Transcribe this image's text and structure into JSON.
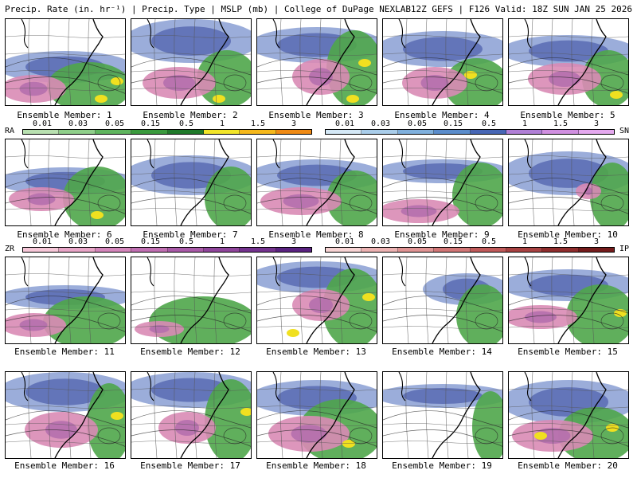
{
  "header": {
    "title_left": "Precip. Rate (in. hr⁻¹) | Precip. Type | MSLP (mb) | College of DuPage NEXLAB",
    "title_right": "12Z GEFS | F126 Valid: 18Z SUN JAN 25 2026"
  },
  "panels": [
    {
      "label": "Ensemble Member: 1"
    },
    {
      "label": "Ensemble Member: 2"
    },
    {
      "label": "Ensemble Member: 3"
    },
    {
      "label": "Ensemble Member: 4"
    },
    {
      "label": "Ensemble Member: 5"
    },
    {
      "label": "Ensemble Member: 6"
    },
    {
      "label": "Ensemble Member: 7"
    },
    {
      "label": "Ensemble Member: 8"
    },
    {
      "label": "Ensemble Member: 9"
    },
    {
      "label": "Ensemble Member: 10"
    },
    {
      "label": "Ensemble Member: 11"
    },
    {
      "label": "Ensemble Member: 12"
    },
    {
      "label": "Ensemble Member: 13"
    },
    {
      "label": "Ensemble Member: 14"
    },
    {
      "label": "Ensemble Member: 15"
    },
    {
      "label": "Ensemble Member: 16"
    },
    {
      "label": "Ensemble Member: 17"
    },
    {
      "label": "Ensemble Member: 18"
    },
    {
      "label": "Ensemble Member: 19"
    },
    {
      "label": "Ensemble Member: 20"
    }
  ],
  "legends": {
    "rain": {
      "end_label": "RA",
      "ticks": [
        "0.01",
        "0.03",
        "0.05",
        "0.15",
        "0.5",
        "1",
        "1.5",
        "3"
      ],
      "colors": [
        "#b8e0b0",
        "#8fcf8a",
        "#5fb55e",
        "#3a9a3d",
        "#1f7a2a",
        "#f2e52a",
        "#f5b81c",
        "#ef8a14"
      ]
    },
    "snow": {
      "end_label": "SN",
      "ticks": [
        "0.01",
        "0.03",
        "0.05",
        "0.15",
        "0.5",
        "1",
        "1.5",
        "3"
      ],
      "colors": [
        "#d4e8f6",
        "#a9cdea",
        "#7fb0dd",
        "#5a8ccb",
        "#4766b5",
        "#b07fd6",
        "#d08fe0",
        "#e4a8ee"
      ]
    },
    "freezing_rain": {
      "end_label": "ZR",
      "ticks": [
        "0.01",
        "0.03",
        "0.05",
        "0.15",
        "0.5",
        "1",
        "1.5",
        "3"
      ],
      "colors": [
        "#f6c7d8",
        "#e8a5c7",
        "#d486bb",
        "#c06fb2",
        "#a95aa8",
        "#8f459b",
        "#74338e",
        "#5a2280"
      ]
    },
    "ice_pellets": {
      "end_label": "IP",
      "ticks": [
        "0.01",
        "0.03",
        "0.05",
        "0.15",
        "0.5",
        "1",
        "1.5",
        "3"
      ],
      "colors": [
        "#f7d3d3",
        "#ecb2b2",
        "#e09494",
        "#d17676",
        "#c05a5a",
        "#a84242",
        "#8f2d2d",
        "#741b1b"
      ]
    }
  }
}
